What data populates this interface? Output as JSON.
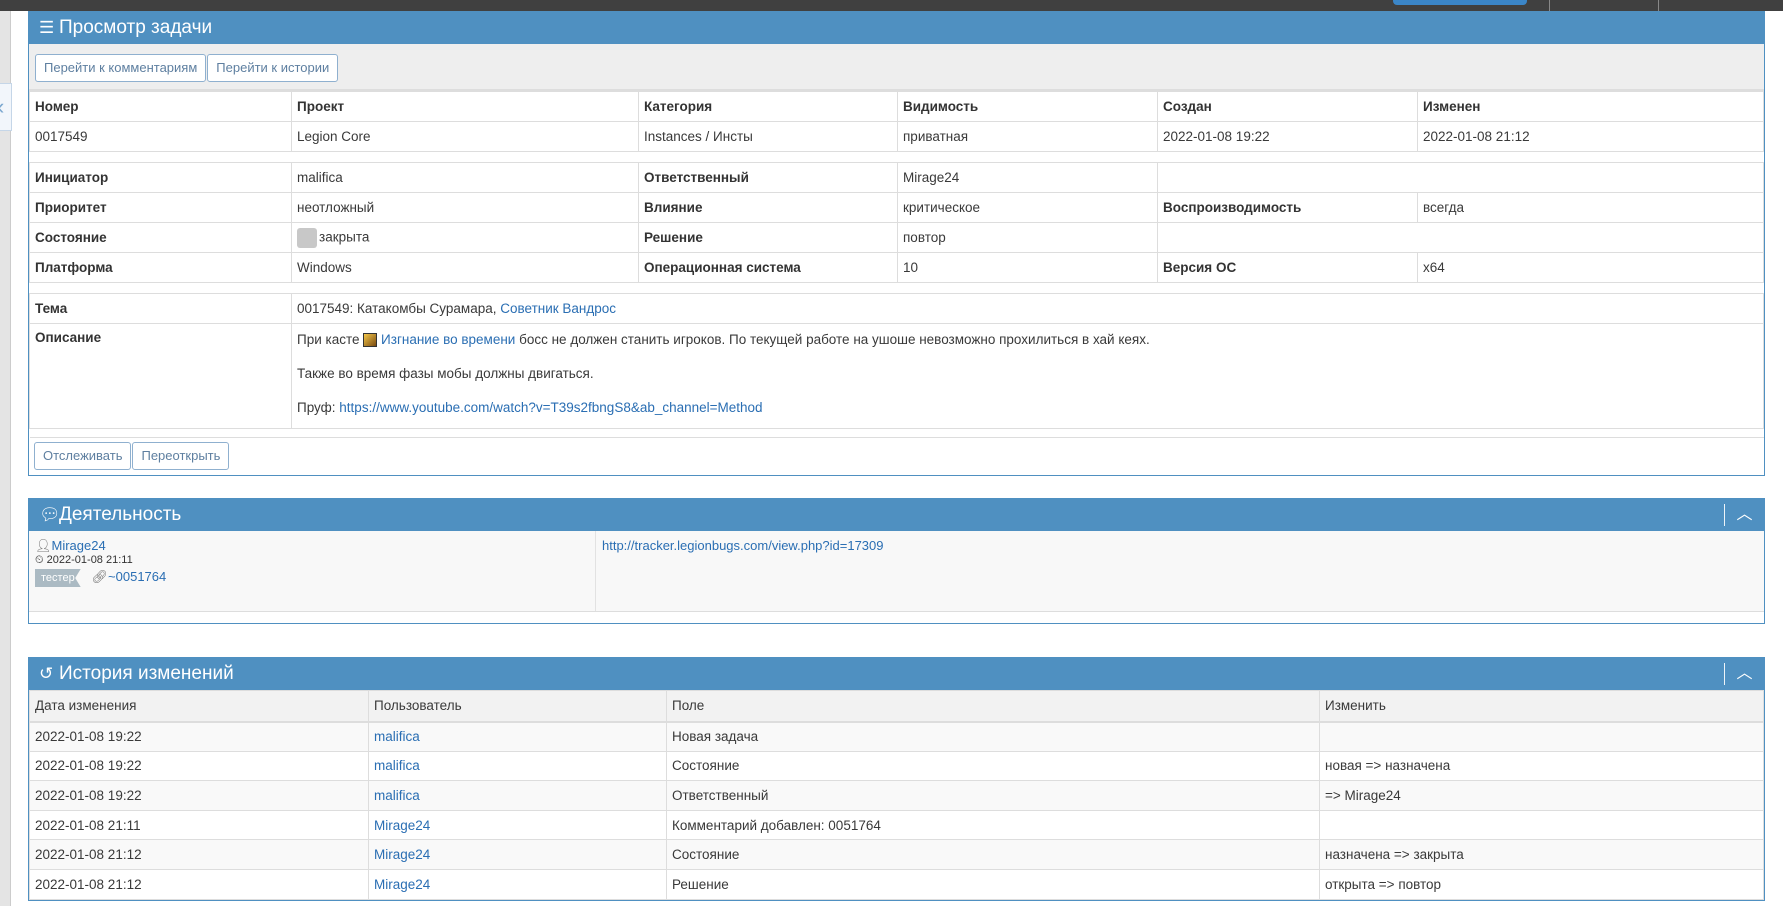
{
  "colors": {
    "header": "#4f90c1",
    "link": "#2a6eb3",
    "topbar": "#404040"
  },
  "view": {
    "title": "Просмотр задачи",
    "title_icon": "bars-icon",
    "buttons": {
      "to_comments": "Перейти к комментариям",
      "to_history": "Перейти к истории"
    },
    "summary_headers": [
      "Номер",
      "Проект",
      "Категория",
      "Видимость",
      "Создан",
      "Изменен"
    ],
    "summary_values": [
      "0017549",
      "Legion Core",
      "Instances / Инсты",
      "приватная",
      "2022-01-08 19:22",
      "2022-01-08 21:12"
    ],
    "fields": {
      "reporter_label": "Инициатор",
      "reporter": "malifica",
      "handler_label": "Ответственный",
      "handler": "Mirage24",
      "priority_label": "Приоритет",
      "priority": "неотложный",
      "severity_label": "Влияние",
      "severity": "критическое",
      "repro_label": "Воспроизводимость",
      "repro": "всегда",
      "status_label": "Состояние",
      "status": "закрыта",
      "resolution_label": "Решение",
      "resolution": "повтор",
      "platform_label": "Платформа",
      "platform": "Windows",
      "os_label": "Операционная система",
      "os": "10",
      "os_version_label": "Версия ОС",
      "os_version": "x64"
    },
    "summary_label": "Тема",
    "summary_prefix": "0017549: Катакомбы Сурамара,",
    "summary_link": "Советник Вандрос",
    "description_label": "Описание",
    "description": {
      "p1_before": "При касте",
      "p1_link": "Изгнание во времени",
      "p1_after": "босс не должен станить игроков. По текущей работе на ушоше невозможно прохилиться в хай кеях.",
      "p2": "Также во время фазы мобы должны двигаться.",
      "p3_label": "Пруф:",
      "p3_link": "https://www.youtube.com/watch?v=T39s2fbngS8&ab_channel=Method"
    },
    "actions": {
      "monitor": "Отслеживать",
      "reopen": "Переоткрыть"
    }
  },
  "activity": {
    "title": "Деятельность",
    "note": {
      "user": "Mirage24",
      "date": "2022-01-08 21:11",
      "role": "тестер",
      "link": "~0051764",
      "text": "http://tracker.legionbugs.com/view.php?id=17309"
    }
  },
  "history": {
    "title": "История изменений",
    "headers": [
      "Дата изменения",
      "Пользователь",
      "Поле",
      "Изменить"
    ],
    "rows": [
      [
        "2022-01-08 19:22",
        "malifica",
        "Новая задача",
        ""
      ],
      [
        "2022-01-08 19:22",
        "malifica",
        "Состояние",
        "новая => назначена"
      ],
      [
        "2022-01-08 19:22",
        "malifica",
        "Ответственный",
        "=> Mirage24"
      ],
      [
        "2022-01-08 21:11",
        "Mirage24",
        "Комментарий добавлен: 0051764",
        ""
      ],
      [
        "2022-01-08 21:12",
        "Mirage24",
        "Состояние",
        "назначена => закрыта"
      ],
      [
        "2022-01-08 21:12",
        "Mirage24",
        "Решение",
        "открыта => повтор"
      ]
    ]
  }
}
